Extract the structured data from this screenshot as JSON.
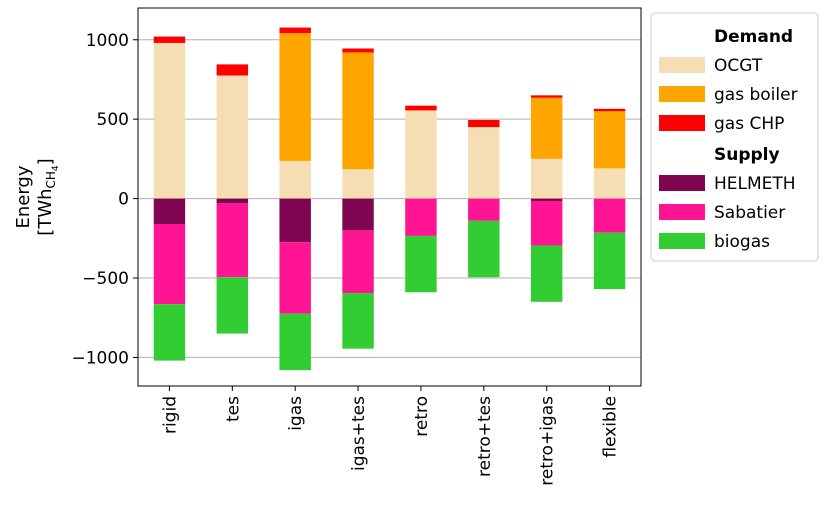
{
  "chart_data": {
    "type": "bar",
    "stacked": true,
    "categories": [
      "rigid",
      "tes",
      "igas",
      "igas+tes",
      "retro",
      "retro+tes",
      "retro+igas",
      "flexible"
    ],
    "ylabel_line1": "Energy",
    "ylabel_line2_prefix": "[TWh",
    "ylabel_sub": "CH",
    "ylabel_subsub": "4",
    "ylabel_line2_suffix": "]",
    "ylim": [
      -1180,
      1200
    ],
    "yticks": [
      1000,
      500,
      0,
      -500,
      -1000
    ],
    "ytick_labels": [
      "1000",
      "500",
      "0",
      "−500",
      "−1000"
    ],
    "grid": "y",
    "legend_position": "right",
    "legend_groups": [
      {
        "heading": "Demand",
        "series_keys": [
          "ocgt",
          "gas_boiler",
          "gas_chp"
        ]
      },
      {
        "heading": "Supply",
        "series_keys": [
          "helmeth",
          "sabatier",
          "biogas"
        ]
      }
    ],
    "demand_series": [
      {
        "key": "ocgt",
        "name": "OCGT",
        "color": "#F5DEB3",
        "values": [
          980,
          775,
          237,
          185,
          555,
          450,
          250,
          190
        ]
      },
      {
        "key": "gas_boiler",
        "name": "gas boiler",
        "color": "#FFA500",
        "values": [
          0,
          0,
          805,
          735,
          0,
          0,
          385,
          360
        ]
      },
      {
        "key": "gas_chp",
        "name": "gas CHP",
        "color": "#FF0000",
        "values": [
          40,
          70,
          35,
          25,
          30,
          45,
          15,
          15
        ]
      }
    ],
    "supply_series": [
      {
        "key": "helmeth",
        "name": "HELMETH",
        "color": "#800550",
        "values": [
          -160,
          -30,
          -275,
          -200,
          0,
          0,
          -15,
          0
        ]
      },
      {
        "key": "sabatier",
        "name": "Sabatier",
        "color": "#FF1493",
        "values": [
          -505,
          -465,
          -450,
          -395,
          -235,
          -140,
          -280,
          -215
        ]
      },
      {
        "key": "biogas",
        "name": "biogas",
        "color": "#32CD32",
        "values": [
          -355,
          -355,
          -355,
          -350,
          -355,
          -355,
          -355,
          -355
        ]
      }
    ]
  }
}
